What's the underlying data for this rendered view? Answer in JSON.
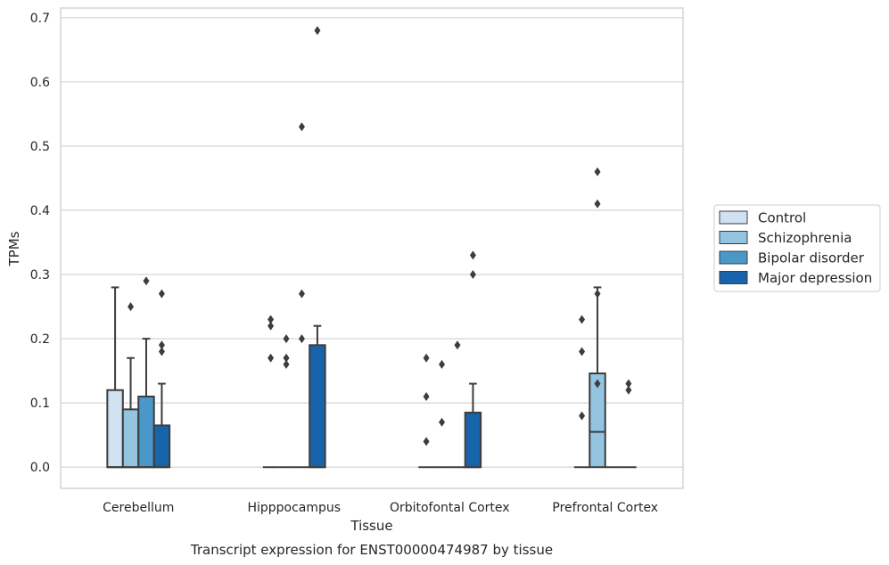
{
  "chart_data": {
    "type": "box",
    "xlabel": "Tissue",
    "ylabel": "TPMs",
    "caption": "Transcript expression for ENST00000474987 by tissue",
    "ylim": [
      -0.033,
      0.715
    ],
    "yticks": [
      "0.0",
      "0.1",
      "0.2",
      "0.3",
      "0.4",
      "0.5",
      "0.6",
      "0.7"
    ],
    "grid": "horizontal",
    "legend_position": "right",
    "categories": [
      "Cerebellum",
      "Hipppocampus",
      "Orbitofontal Cortex",
      "Prefrontal Cortex"
    ],
    "series": [
      {
        "name": "Control",
        "color": "#d0e1f2",
        "boxes": [
          {
            "q1": 0.0,
            "median": 0.0,
            "q3": 0.12,
            "whislo": 0.0,
            "whishi": 0.28,
            "fliers": []
          },
          {
            "q1": 0.0,
            "median": 0.0,
            "q3": 0.0,
            "whislo": 0.0,
            "whishi": 0.0,
            "fliers": [
              0.17,
              0.22,
              0.23
            ]
          },
          {
            "q1": 0.0,
            "median": 0.0,
            "q3": 0.0,
            "whislo": 0.0,
            "whishi": 0.0,
            "fliers": [
              0.04,
              0.11,
              0.17
            ]
          },
          {
            "q1": 0.0,
            "median": 0.0,
            "q3": 0.0,
            "whislo": 0.0,
            "whishi": 0.0,
            "fliers": [
              0.08,
              0.18,
              0.23
            ]
          }
        ]
      },
      {
        "name": "Schizophrenia",
        "color": "#94c4df",
        "boxes": [
          {
            "q1": 0.0,
            "median": 0.0,
            "q3": 0.09,
            "whislo": 0.0,
            "whishi": 0.17,
            "fliers": [
              0.25
            ]
          },
          {
            "q1": 0.0,
            "median": 0.0,
            "q3": 0.0,
            "whislo": 0.0,
            "whishi": 0.0,
            "fliers": [
              0.16,
              0.17,
              0.2
            ]
          },
          {
            "q1": 0.0,
            "median": 0.0,
            "q3": 0.0,
            "whislo": 0.0,
            "whishi": 0.0,
            "fliers": [
              0.07,
              0.16
            ]
          },
          {
            "q1": 0.0,
            "median": 0.055,
            "q3": 0.146,
            "whislo": 0.0,
            "whishi": 0.28,
            "fliers": [
              0.13,
              0.27,
              0.41,
              0.46
            ]
          }
        ]
      },
      {
        "name": "Bipolar disorder",
        "color": "#4a98c9",
        "boxes": [
          {
            "q1": 0.0,
            "median": 0.0,
            "q3": 0.11,
            "whislo": 0.0,
            "whishi": 0.2,
            "fliers": [
              0.29
            ]
          },
          {
            "q1": 0.0,
            "median": 0.0,
            "q3": 0.0,
            "whislo": 0.0,
            "whishi": 0.0,
            "fliers": [
              0.2,
              0.27,
              0.53
            ]
          },
          {
            "q1": 0.0,
            "median": 0.0,
            "q3": 0.0,
            "whislo": 0.0,
            "whishi": 0.0,
            "fliers": [
              0.19
            ]
          },
          {
            "q1": 0.0,
            "median": 0.0,
            "q3": 0.0,
            "whislo": 0.0,
            "whishi": 0.0,
            "fliers": []
          }
        ]
      },
      {
        "name": "Major depression",
        "color": "#1764ab",
        "boxes": [
          {
            "q1": 0.0,
            "median": 0.0,
            "q3": 0.065,
            "whislo": 0.0,
            "whishi": 0.13,
            "fliers": [
              0.18,
              0.19,
              0.27
            ]
          },
          {
            "q1": 0.0,
            "median": 0.0,
            "q3": 0.19,
            "whislo": 0.0,
            "whishi": 0.22,
            "fliers": [
              0.68
            ]
          },
          {
            "q1": 0.0,
            "median": 0.0,
            "q3": 0.085,
            "whislo": 0.0,
            "whishi": 0.13,
            "fliers": [
              0.3,
              0.33
            ]
          },
          {
            "q1": 0.0,
            "median": 0.0,
            "q3": 0.0,
            "whislo": 0.0,
            "whishi": 0.0,
            "fliers": [
              0.12,
              0.13
            ]
          }
        ]
      }
    ]
  }
}
